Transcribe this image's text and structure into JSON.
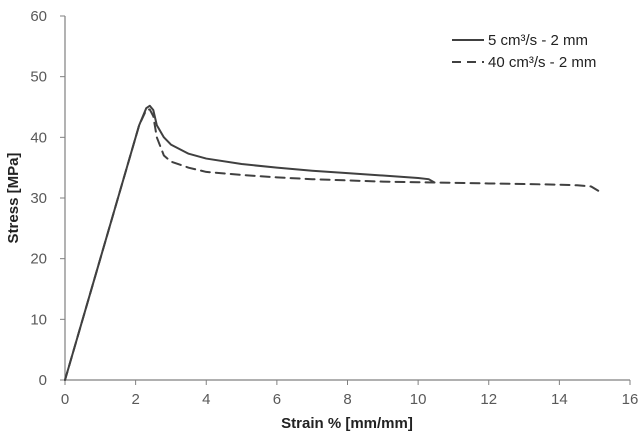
{
  "chart_data": {
    "type": "line",
    "title": "",
    "xlabel": "Strain % [mm/mm]",
    "ylabel": "Stress [MPa]",
    "xlim": [
      0,
      16
    ],
    "ylim": [
      0,
      60
    ],
    "xticks": [
      0,
      2,
      4,
      6,
      8,
      10,
      12,
      14,
      16
    ],
    "yticks": [
      0,
      10,
      20,
      30,
      40,
      50,
      60
    ],
    "grid": false,
    "legend_position": "top-right",
    "series": [
      {
        "name": "5 cm³/s  - 2 mm",
        "style": "solid",
        "color": "#404040",
        "x": [
          0,
          0.3,
          0.6,
          1.0,
          1.4,
          1.8,
          2.1,
          2.3,
          2.4,
          2.5,
          2.6,
          2.8,
          3.0,
          3.5,
          4.0,
          5.0,
          6.0,
          7.0,
          8.0,
          9.0,
          10.0,
          10.3,
          10.45
        ],
        "y": [
          0,
          6,
          12,
          20,
          28,
          36,
          42,
          44.8,
          45.2,
          44.5,
          42.0,
          40.0,
          38.8,
          37.3,
          36.5,
          35.6,
          35.0,
          34.5,
          34.1,
          33.7,
          33.3,
          33.1,
          32.6
        ]
      },
      {
        "name": "40 cm³/s  - 2 mm",
        "style": "dashed",
        "color": "#404040",
        "x": [
          0,
          0.3,
          0.6,
          1.0,
          1.4,
          1.8,
          2.1,
          2.3,
          2.4,
          2.5,
          2.6,
          2.8,
          3.0,
          3.5,
          4.0,
          5.0,
          6.0,
          7.0,
          8.0,
          9.0,
          10.0,
          11.0,
          12.0,
          13.0,
          14.0,
          14.5,
          14.9,
          15.1
        ],
        "y": [
          0,
          6,
          12,
          20,
          28,
          36,
          42,
          44.5,
          44.6,
          43.5,
          40.0,
          37.0,
          36.0,
          35.0,
          34.3,
          33.8,
          33.4,
          33.1,
          32.9,
          32.7,
          32.6,
          32.5,
          32.4,
          32.3,
          32.2,
          32.1,
          31.9,
          31.2
        ]
      }
    ]
  }
}
